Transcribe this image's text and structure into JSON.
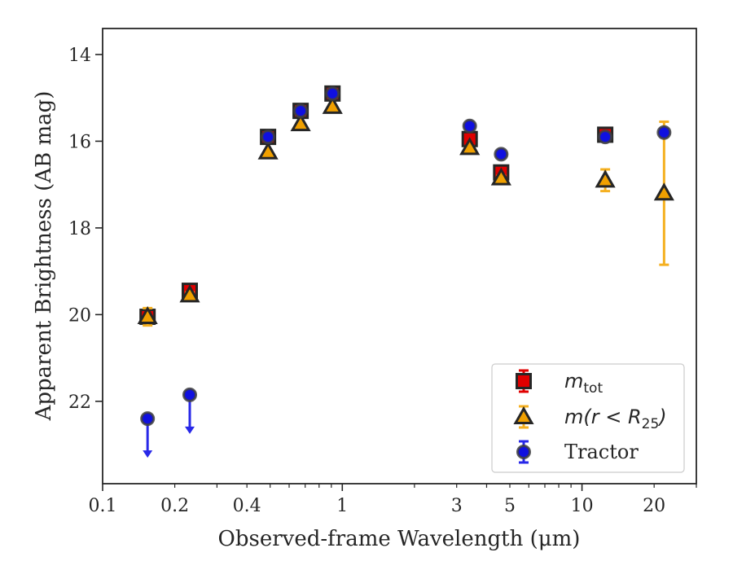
{
  "chart_data": {
    "type": "scatter",
    "xlabel": "Observed-frame Wavelength (μm)",
    "ylabel": "Apparent Brightness (AB mag)",
    "xscale": "log",
    "xlim": [
      0.1,
      30
    ],
    "ylim": [
      23.9,
      13.4
    ],
    "y_inverted": true,
    "grid": false,
    "legend_position": "lower-right",
    "x_ticks": [
      {
        "value": 0.1,
        "label": "0.1"
      },
      {
        "value": 0.2,
        "label": "0.2"
      },
      {
        "value": 0.4,
        "label": "0.4"
      },
      {
        "value": 1,
        "label": "1"
      },
      {
        "value": 3,
        "label": "3"
      },
      {
        "value": 5,
        "label": "5"
      },
      {
        "value": 10,
        "label": "10"
      },
      {
        "value": 20,
        "label": "20"
      }
    ],
    "y_ticks": [
      {
        "value": 14,
        "label": "14"
      },
      {
        "value": 16,
        "label": "16"
      },
      {
        "value": 18,
        "label": "18"
      },
      {
        "value": 20,
        "label": "20"
      },
      {
        "value": 22,
        "label": "22"
      }
    ],
    "series": [
      {
        "name": "m_tot",
        "legend_main": "m",
        "legend_sub": "tot",
        "marker": "square",
        "color": "#e00000",
        "edge_color": "#262626",
        "points": [
          {
            "x": 0.154,
            "y": 20.05,
            "err": 0.12
          },
          {
            "x": 0.231,
            "y": 19.45,
            "err": 0.08
          },
          {
            "x": 0.49,
            "y": 15.9,
            "err": 0.03
          },
          {
            "x": 0.67,
            "y": 15.3,
            "err": 0.03
          },
          {
            "x": 0.91,
            "y": 14.9,
            "err": 0.03
          },
          {
            "x": 3.4,
            "y": 15.95,
            "err": 0.03
          },
          {
            "x": 4.6,
            "y": 16.72,
            "err": 0.06
          },
          {
            "x": 12.5,
            "y": 15.85,
            "err": 0.06
          }
        ]
      },
      {
        "name": "m(r < R25)",
        "legend_main": "m(r < R",
        "legend_sub": "25",
        "legend_tail": ")",
        "marker": "triangle",
        "color": "#f0a000",
        "edge_color": "#262626",
        "points": [
          {
            "x": 0.154,
            "y": 20.05,
            "err": 0.2
          },
          {
            "x": 0.231,
            "y": 19.55,
            "err": 0.06
          },
          {
            "x": 0.49,
            "y": 16.25,
            "err": 0.03
          },
          {
            "x": 0.67,
            "y": 15.6,
            "err": 0.03
          },
          {
            "x": 0.91,
            "y": 15.2,
            "err": 0.03
          },
          {
            "x": 3.4,
            "y": 16.15,
            "err": 0.03
          },
          {
            "x": 4.6,
            "y": 16.85,
            "err": 0.05
          },
          {
            "x": 12.5,
            "y": 16.9,
            "err": 0.25
          },
          {
            "x": 22.0,
            "y": 17.2,
            "err_up": 1.65,
            "err_down": 1.65
          }
        ]
      },
      {
        "name": "Tractor",
        "legend_main": "Tractor",
        "marker": "circle",
        "color": "#1010e0",
        "edge_color": "#404040",
        "points": [
          {
            "x": 0.154,
            "y": 22.4,
            "upper_limit": true
          },
          {
            "x": 0.231,
            "y": 21.85,
            "upper_limit": true
          },
          {
            "x": 0.49,
            "y": 15.9,
            "err": 0.02
          },
          {
            "x": 0.67,
            "y": 15.3,
            "err": 0.02
          },
          {
            "x": 0.91,
            "y": 14.9,
            "err": 0.02
          },
          {
            "x": 3.4,
            "y": 15.65,
            "err": 0.03
          },
          {
            "x": 4.6,
            "y": 16.3,
            "err": 0.03
          },
          {
            "x": 12.5,
            "y": 15.9,
            "err": 0.03
          },
          {
            "x": 22.0,
            "y": 15.8,
            "err": 0.08
          }
        ]
      }
    ]
  }
}
